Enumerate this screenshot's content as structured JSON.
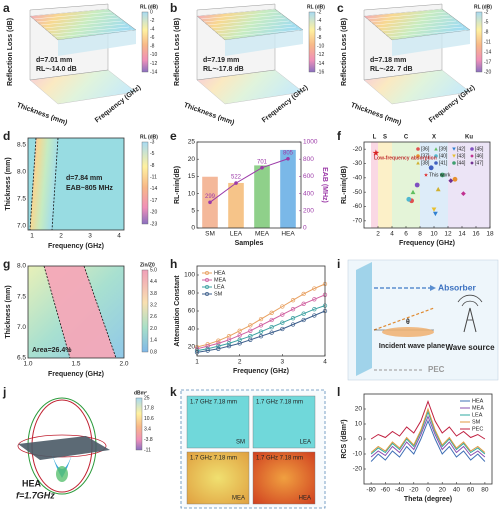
{
  "panels": {
    "a": {
      "label": "a",
      "z_label": "Reflection Loss (dB)",
      "note1": "d=7.01 mm",
      "note2": "RL~-14.0 dB",
      "x_label": "Thickness (mm)",
      "y_label": "Frequency (GHz)",
      "cbar_title": "RL (dB)",
      "cbar_ticks": [
        "0",
        "-2",
        "-4",
        "-6",
        "-8",
        "-10",
        "-12",
        "-14"
      ]
    },
    "b": {
      "label": "b",
      "z_label": "Reflection Loss (dB)",
      "note1": "d=7.19 mm",
      "note2": "RL~-17.8 dB",
      "x_label": "Thickness (mm)",
      "y_label": "Frequency (GHz)",
      "cbar_title": "RL (dB)",
      "cbar_ticks": [
        "-2",
        "-4",
        "-6",
        "-8",
        "-10",
        "-12",
        "-14",
        "-16"
      ]
    },
    "c": {
      "label": "c",
      "z_label": "Reflection Loss (dB)",
      "note1": "d=7.18 mm",
      "note2": "RL~-22. 7 dB",
      "x_label": "Thickness (mm)",
      "y_label": "Frequency (GHz)",
      "cbar_title": "RL (dB)",
      "cbar_ticks": [
        "-2",
        "-5",
        "-8",
        "-11",
        "-14",
        "-17",
        "-20"
      ]
    },
    "d": {
      "label": "d",
      "x_label": "Frequency (GHz)",
      "y_label": "Thickness (mm)",
      "xticks": [
        "1",
        "2",
        "3",
        "4"
      ],
      "yticks": [
        "7.0",
        "7.5",
        "8.0",
        "8.5"
      ],
      "note1": "d=7.84 mm",
      "note2": "EAB~805 MHz",
      "cbar_title": "RL (dB)",
      "cbar_ticks": [
        "-3",
        "-5",
        "-8",
        "-11",
        "-14",
        "-17",
        "-20",
        "-23"
      ]
    },
    "g": {
      "label": "g",
      "x_label": "Frequency (GHz)",
      "y_label": "Thickness (mm)",
      "xticks": [
        "1.0",
        "1.5",
        "2.0"
      ],
      "yticks": [
        "6.5",
        "7.0",
        "7.5",
        "8.0"
      ],
      "note1": "Area=26.4%",
      "cbar_title": "Zin/Z0",
      "cbar_ticks": [
        "5.0",
        "4.4",
        "3.8",
        "3.2",
        "2.6",
        "2.0",
        "1.4",
        "0.8"
      ]
    },
    "i": {
      "label": "i",
      "absorber": "Absorber",
      "theta": "θ",
      "incident": "Incident wave plane",
      "source": "Wave source",
      "pec": "PEC"
    },
    "j": {
      "label": "j",
      "name": "HEA",
      "freq": "f=1.7GHz",
      "cbar_title": "dBm²",
      "cbar_ticks": [
        "25",
        "17.8",
        "10.6",
        "3.4",
        "-3.8",
        "-11"
      ]
    },
    "k": {
      "label": "k",
      "tiles": [
        {
          "caption": "1.7 GHz 7.18 mm",
          "name": "SM"
        },
        {
          "caption": "1.7 GHz 7.18 mm",
          "name": "LEA"
        },
        {
          "caption": "1.7 GHz 7.18 mm",
          "name": "MEA"
        },
        {
          "caption": "1.7 GHz 7.18 mm",
          "name": "HEA"
        }
      ]
    }
  },
  "chart_data": [
    {
      "type": "bar",
      "label": "e",
      "categories": [
        "SM",
        "LEA",
        "MEA",
        "HEA"
      ],
      "values": [
        14.9,
        13.1,
        18.2,
        22.7
      ],
      "colors": [
        "#f4b89a",
        "#f6c489",
        "#8fd08a",
        "#7ab8e8"
      ],
      "line": {
        "values": [
          299,
          522,
          701,
          805
        ],
        "color": "#9c3aa8",
        "axis": "y2"
      },
      "ylim": [
        0,
        25
      ],
      "yticks": [
        0,
        5,
        10,
        15,
        20,
        25
      ],
      "y2lim": [
        0,
        1000
      ],
      "y2ticks": [
        0,
        200,
        400,
        600,
        800,
        1000
      ],
      "x_label": "Samples",
      "y_label": "RL-min(dB)",
      "y2_label": "EAB (MHz)"
    },
    {
      "type": "scatter",
      "label": "f",
      "x_label": "Frequency (GHz)",
      "y_label": "RL-min(dB)",
      "xlim": [
        0,
        18
      ],
      "xticks": [
        2,
        4,
        6,
        8,
        10,
        12,
        14,
        16,
        18
      ],
      "ylim": [
        -75,
        -15
      ],
      "yticks": [
        -20,
        -30,
        -40,
        -50,
        -60,
        -70
      ],
      "bands": [
        {
          "name": "L",
          "range": [
            1,
            2
          ],
          "color": "#f8c8d8"
        },
        {
          "name": "S",
          "range": [
            2,
            4
          ],
          "color": "#fbe9b0"
        },
        {
          "name": "C",
          "range": [
            4,
            8
          ],
          "color": "#d8f0c8"
        },
        {
          "name": "X",
          "range": [
            8,
            12
          ],
          "color": "#cfe4f6"
        },
        {
          "name": "Ku",
          "range": [
            12,
            18
          ],
          "color": "#e4d8f2"
        }
      ],
      "annotation": "Low-frequency absorption",
      "series": [
        {
          "name": "[36]",
          "color": "#e05050",
          "marker": "circle",
          "x": [
            6.8
          ],
          "y": [
            -56
          ]
        },
        {
          "name": "[39]",
          "color": "#60c060",
          "marker": "triangle",
          "x": [
            7.0
          ],
          "y": [
            -50
          ]
        },
        {
          "name": "[42]",
          "color": "#3080d0",
          "marker": "triangle-down",
          "x": [
            10.2
          ],
          "y": [
            -65
          ]
        },
        {
          "name": "[45]",
          "color": "#8050c0",
          "marker": "circle",
          "x": [
            7.6
          ],
          "y": [
            -45
          ]
        },
        {
          "name": "[37]",
          "color": "#e89030",
          "marker": "circle",
          "x": [
            13.0
          ],
          "y": [
            -41
          ]
        },
        {
          "name": "[40]",
          "color": "#50b8d0",
          "marker": "circle",
          "x": [
            6.4
          ],
          "y": [
            -55
          ]
        },
        {
          "name": "[43]",
          "color": "#e8c030",
          "marker": "triangle-down",
          "x": [
            10.0
          ],
          "y": [
            -62
          ]
        },
        {
          "name": "[46]",
          "color": "#c03090",
          "marker": "diamond",
          "x": [
            14.2
          ],
          "y": [
            -51
          ]
        },
        {
          "name": "[38]",
          "color": "#d0b030",
          "marker": "triangle",
          "x": [
            10.6
          ],
          "y": [
            -48
          ]
        },
        {
          "name": "[41]",
          "color": "#4060c0",
          "marker": "circle",
          "x": [
            9.6
          ],
          "y": [
            -33
          ]
        },
        {
          "name": "[44]",
          "color": "#40a070",
          "marker": "circle",
          "x": [
            11.2
          ],
          "y": [
            -38
          ]
        },
        {
          "name": "[47]",
          "color": "#703090",
          "marker": "diamond",
          "x": [
            12.4
          ],
          "y": [
            -42
          ]
        },
        {
          "name": "This work",
          "color": "#e02020",
          "marker": "star",
          "x": [
            1.7
          ],
          "y": [
            -22.7
          ]
        }
      ]
    },
    {
      "type": "line",
      "label": "h",
      "x_label": "Frequency (GHz)",
      "y_label": "Attenuation Constant",
      "markers": true,
      "legend": "upper left",
      "x": [
        1,
        1.25,
        1.5,
        1.75,
        2,
        2.25,
        2.5,
        2.75,
        3,
        3.25,
        3.5,
        3.75,
        4
      ],
      "xlim": [
        1,
        4
      ],
      "xticks": [
        1,
        2,
        3,
        4
      ],
      "ylim": [
        10,
        110
      ],
      "yticks": [
        20,
        40,
        60,
        80,
        100
      ],
      "series": [
        {
          "name": "HEA",
          "color": "#e8a060",
          "values": [
            20,
            23,
            27,
            32,
            38,
            44,
            51,
            58,
            65,
            72,
            79,
            85,
            90
          ]
        },
        {
          "name": "MEA",
          "color": "#d060a0",
          "values": [
            18,
            21,
            24,
            28,
            33,
            38,
            44,
            50,
            56,
            62,
            68,
            73,
            78
          ]
        },
        {
          "name": "LEA",
          "color": "#3aa0a0",
          "values": [
            16,
            18,
            21,
            24,
            28,
            32,
            37,
            42,
            47,
            52,
            57,
            62,
            66
          ]
        },
        {
          "name": "SM",
          "color": "#3d5f8c",
          "values": [
            14,
            16,
            18,
            21,
            24,
            28,
            32,
            36,
            40,
            45,
            50,
            55,
            60
          ]
        }
      ]
    },
    {
      "type": "line",
      "label": "l",
      "x_label": "Theta (degree)",
      "y_label": "RCS (dBm²)",
      "markers": false,
      "legend": "upper right",
      "x": [
        -80,
        -70,
        -60,
        -50,
        -40,
        -30,
        -20,
        -10,
        0,
        10,
        20,
        30,
        40,
        50,
        60,
        70,
        80
      ],
      "xlim": [
        -90,
        90
      ],
      "xticks": [
        -80,
        -60,
        -40,
        -20,
        0,
        20,
        40,
        60,
        80
      ],
      "ylim": [
        -30,
        30
      ],
      "yticks": [
        -20,
        -10,
        0,
        10,
        20
      ],
      "series": [
        {
          "name": "HEA",
          "color": "#3f6fb5",
          "values": [
            -15,
            -10,
            -14,
            -8,
            -12,
            -5,
            -10,
            0,
            12,
            0,
            -10,
            -5,
            -12,
            -8,
            -14,
            -10,
            -15
          ]
        },
        {
          "name": "MEA",
          "color": "#8a4fb0",
          "values": [
            -12,
            -8,
            -11,
            -5,
            -9,
            -2,
            -7,
            3,
            15,
            3,
            -7,
            -2,
            -9,
            -5,
            -11,
            -8,
            -12
          ]
        },
        {
          "name": "LEA",
          "color": "#2fa8a0",
          "values": [
            -10,
            -6,
            -9,
            -3,
            -7,
            0,
            -5,
            5,
            18,
            5,
            -5,
            0,
            -7,
            -3,
            -9,
            -6,
            -10
          ]
        },
        {
          "name": "SM",
          "color": "#e09a40",
          "values": [
            -9,
            -5,
            -8,
            -2,
            -6,
            1,
            -4,
            6,
            20,
            6,
            -4,
            1,
            -6,
            -2,
            -8,
            -5,
            -9
          ]
        },
        {
          "name": "PEC",
          "color": "#c02040",
          "values": [
            0,
            3,
            1,
            5,
            2,
            8,
            4,
            12,
            25,
            12,
            4,
            8,
            2,
            5,
            1,
            3,
            0
          ]
        }
      ]
    }
  ]
}
